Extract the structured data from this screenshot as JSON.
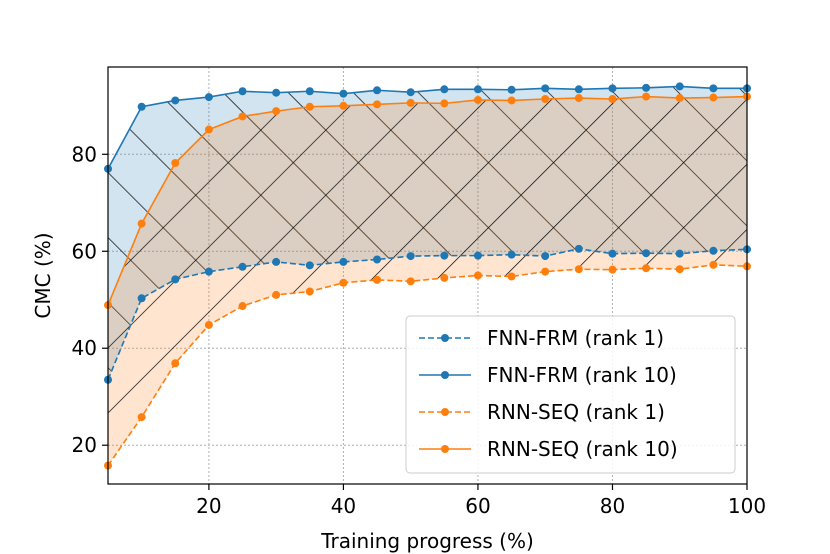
{
  "chart_data": {
    "type": "line",
    "title": "",
    "xlabel": "Training progress (%)",
    "ylabel": "CMC (%)",
    "xlim": [
      5,
      100
    ],
    "ylim": [
      12,
      98
    ],
    "xticks": [
      20,
      40,
      60,
      80,
      100
    ],
    "yticks": [
      20,
      40,
      60,
      80
    ],
    "grid": true,
    "legend_position": "lower-right",
    "x": [
      5,
      10,
      15,
      20,
      25,
      30,
      35,
      40,
      45,
      50,
      55,
      60,
      65,
      70,
      75,
      80,
      85,
      90,
      95,
      100
    ],
    "series": [
      {
        "name": "FNN-FRM (rank 1)",
        "color": "#1f77b4",
        "linestyle": "dashed",
        "values": [
          33.5,
          50.3,
          54.2,
          55.8,
          56.8,
          57.8,
          57.1,
          57.8,
          58.3,
          59.0,
          59.1,
          59.1,
          59.3,
          59.0,
          60.5,
          59.5,
          59.6,
          59.5,
          60.1,
          60.4
        ]
      },
      {
        "name": "FNN-FRM (rank 10)",
        "color": "#1f77b4",
        "linestyle": "solid",
        "values": [
          77.0,
          89.8,
          91.1,
          91.8,
          93.0,
          92.7,
          93.0,
          92.5,
          93.2,
          92.8,
          93.4,
          93.4,
          93.3,
          93.6,
          93.4,
          93.6,
          93.7,
          94.0,
          93.6,
          93.6
        ]
      },
      {
        "name": "RNN-SEQ (rank 1)",
        "color": "#ff7f0e",
        "linestyle": "dashed",
        "values": [
          15.8,
          25.8,
          36.9,
          44.8,
          48.7,
          51.0,
          51.7,
          53.5,
          54.1,
          53.8,
          54.5,
          55.0,
          54.8,
          55.8,
          56.3,
          56.2,
          56.5,
          56.3,
          57.2,
          56.9
        ]
      },
      {
        "name": "RNN-SEQ (rank 10)",
        "color": "#ff7f0e",
        "linestyle": "solid",
        "values": [
          48.9,
          65.7,
          78.2,
          85.1,
          87.8,
          88.9,
          89.8,
          90.0,
          90.3,
          90.6,
          90.5,
          91.2,
          91.1,
          91.4,
          91.6,
          91.4,
          91.9,
          91.6,
          91.7,
          91.9
        ]
      }
    ],
    "fills": [
      {
        "between": [
          "FNN-FRM (rank 1)",
          "FNN-FRM (rank 10)"
        ],
        "color": "#1f77b4",
        "hatch": "/"
      },
      {
        "between": [
          "RNN-SEQ (rank 1)",
          "RNN-SEQ (rank 10)"
        ],
        "color": "#ff7f0e",
        "hatch": "\\"
      }
    ]
  }
}
